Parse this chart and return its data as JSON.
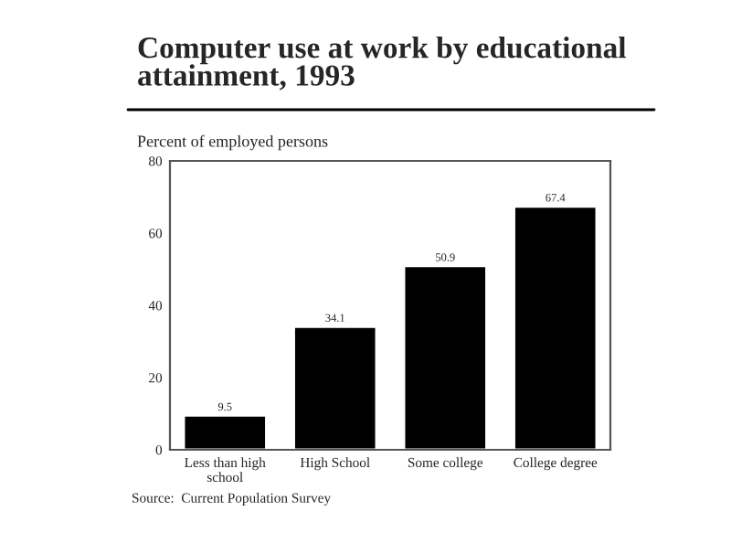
{
  "chart_data": {
    "type": "bar",
    "title": "Computer use at work by educational\nattainment, 1993",
    "ylabel": "Percent of employed persons",
    "categories": [
      "Less than high\nschool",
      "High School",
      "Some college",
      "College degree"
    ],
    "values": [
      9.5,
      34.1,
      50.9,
      67.4
    ],
    "color": "#000000",
    "ylim": [
      0,
      80
    ],
    "yticks": [
      0,
      20,
      40,
      60,
      80
    ],
    "data_labels": true,
    "grid": false,
    "legend": false,
    "annotations": [
      "Source:  Current Population Survey"
    ]
  }
}
